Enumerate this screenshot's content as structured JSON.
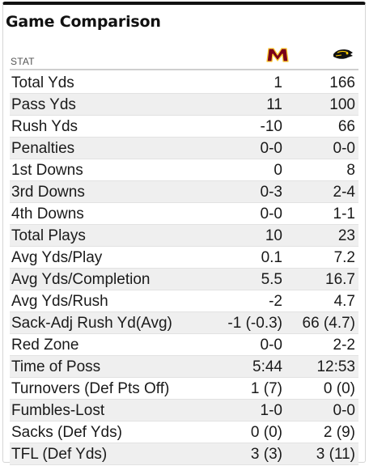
{
  "title": "Game Comparison",
  "header": {
    "stat_label": "STAT",
    "team1_logo": "minnesota-m-logo",
    "team2_logo": "iowa-hawkeye-logo"
  },
  "colors": {
    "team1_maroon": "#7a0019",
    "team1_gold": "#ffcc33",
    "team2_black": "#111111",
    "team2_gold": "#ffcd00",
    "row_alt": "#efefef"
  },
  "rows": [
    {
      "stat": "Total Yds",
      "team1": "1",
      "team2": "166"
    },
    {
      "stat": "Pass Yds",
      "team1": "11",
      "team2": "100"
    },
    {
      "stat": "Rush Yds",
      "team1": "-10",
      "team2": "66"
    },
    {
      "stat": "Penalties",
      "team1": "0-0",
      "team2": "0-0"
    },
    {
      "stat": "1st Downs",
      "team1": "0",
      "team2": "8"
    },
    {
      "stat": "3rd Downs",
      "team1": "0-3",
      "team2": "2-4"
    },
    {
      "stat": "4th Downs",
      "team1": "0-0",
      "team2": "1-1"
    },
    {
      "stat": "Total Plays",
      "team1": "10",
      "team2": "23"
    },
    {
      "stat": "Avg Yds/Play",
      "team1": "0.1",
      "team2": "7.2"
    },
    {
      "stat": "Avg Yds/Completion",
      "team1": "5.5",
      "team2": "16.7"
    },
    {
      "stat": "Avg Yds/Rush",
      "team1": "-2",
      "team2": "4.7"
    },
    {
      "stat": "Sack-Adj Rush Yd(Avg)",
      "team1": "-1 (-0.3)",
      "team2": "66 (4.7)"
    },
    {
      "stat": "Red Zone",
      "team1": "0-0",
      "team2": "2-2"
    },
    {
      "stat": "Time of Poss",
      "team1": "5:44",
      "team2": "12:53"
    },
    {
      "stat": "Turnovers (Def Pts Off)",
      "team1": "1 (7)",
      "team2": "0 (0)"
    },
    {
      "stat": "Fumbles-Lost",
      "team1": "1-0",
      "team2": "0-0"
    },
    {
      "stat": "Sacks (Def Yds)",
      "team1": "0 (0)",
      "team2": "2 (9)"
    },
    {
      "stat": "TFL (Def Yds)",
      "team1": "3 (3)",
      "team2": "3 (11)"
    }
  ]
}
